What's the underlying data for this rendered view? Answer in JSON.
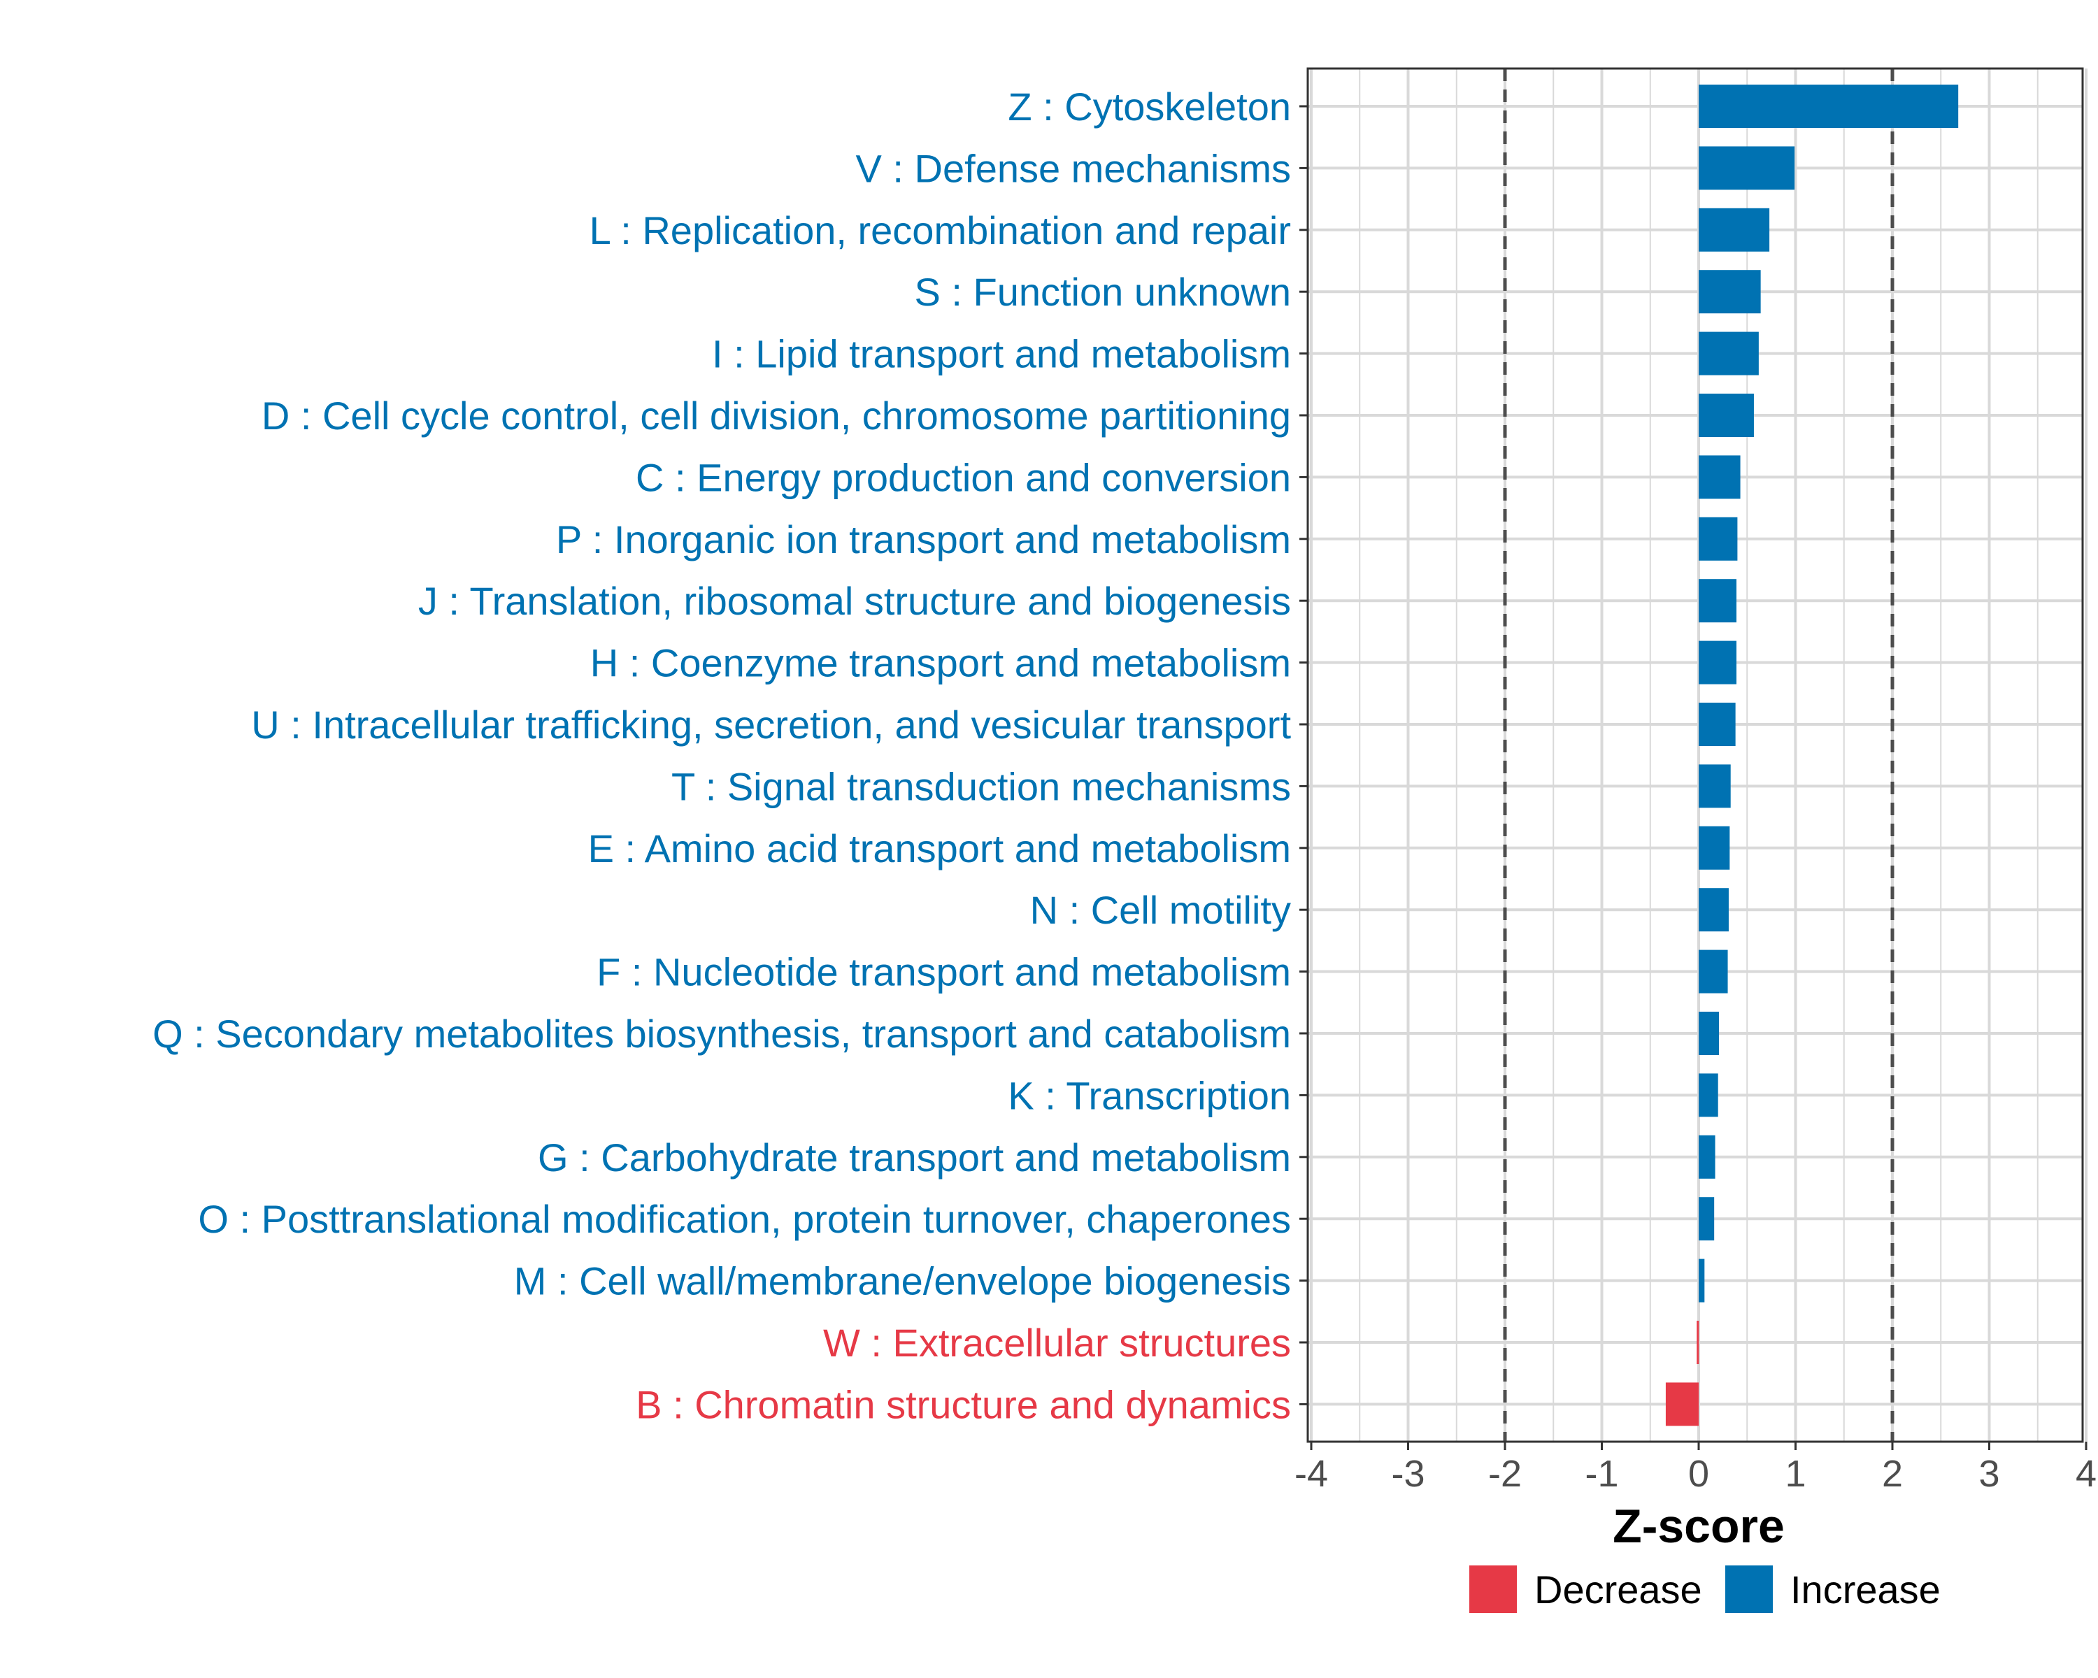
{
  "chart_data": {
    "type": "bar",
    "orientation": "horizontal",
    "title": "",
    "xlabel": "Z-score",
    "ylabel": "",
    "xlim": [
      -4,
      4
    ],
    "xticks": [
      "-4",
      "-3",
      "-2",
      "-1",
      "0",
      "1",
      "2",
      "3",
      "4"
    ],
    "reference_lines": [
      -2,
      2
    ],
    "grid": true,
    "categories": [
      "Z : Cytoskeleton",
      "V : Defense mechanisms",
      "L : Replication, recombination and repair",
      "S : Function unknown",
      "I : Lipid transport and metabolism",
      "D : Cell cycle control, cell division, chromosome partitioning",
      "C : Energy production and conversion",
      "P : Inorganic ion transport and metabolism",
      "J : Translation, ribosomal structure and biogenesis",
      "H : Coenzyme transport and metabolism",
      "U : Intracellular trafficking, secretion, and vesicular transport",
      "T : Signal transduction mechanisms",
      "E : Amino acid transport and metabolism",
      "N : Cell motility",
      "F : Nucleotide transport and metabolism",
      "Q : Secondary metabolites biosynthesis, transport and catabolism",
      "K : Transcription",
      "G : Carbohydrate transport and metabolism",
      "O : Posttranslational modification, protein turnover, chaperones",
      "M : Cell wall/membrane/envelope biogenesis",
      "W : Extracellular structures",
      "B : Chromatin structure and dynamics"
    ],
    "values": [
      2.68,
      0.99,
      0.73,
      0.64,
      0.62,
      0.57,
      0.43,
      0.4,
      0.39,
      0.39,
      0.38,
      0.33,
      0.32,
      0.31,
      0.3,
      0.21,
      0.2,
      0.17,
      0.16,
      0.06,
      -0.02,
      -0.34
    ],
    "groups": [
      "Increase",
      "Increase",
      "Increase",
      "Increase",
      "Increase",
      "Increase",
      "Increase",
      "Increase",
      "Increase",
      "Increase",
      "Increase",
      "Increase",
      "Increase",
      "Increase",
      "Increase",
      "Increase",
      "Increase",
      "Increase",
      "Increase",
      "Increase",
      "Decrease",
      "Decrease"
    ],
    "legend": {
      "position": "bottom",
      "entries": [
        {
          "label": "Decrease",
          "color": "#e63946"
        },
        {
          "label": "Increase",
          "color": "#0072b2"
        }
      ]
    },
    "colors": {
      "increase": "#0072b2",
      "decrease": "#e63946",
      "grid": "#d9d9d9",
      "panel_border": "#333333",
      "ref_line": "#4d4d4d"
    }
  }
}
